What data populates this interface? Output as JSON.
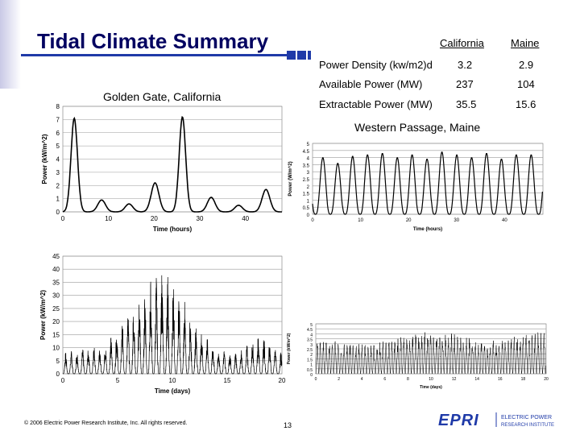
{
  "title": "Tidal Climate Summary",
  "table": {
    "headers": [
      "California",
      "Maine"
    ],
    "rows": [
      {
        "label": "Power Density (kw/m2)d",
        "california": "3.2",
        "maine": "2.9"
      },
      {
        "label": "Available Power (MW)",
        "california": "237",
        "maine": "104"
      },
      {
        "label": "Extractable Power (MW)",
        "california": "35.5",
        "maine": "15.6"
      }
    ]
  },
  "captions": {
    "golden_gate": "Golden Gate, California",
    "western_passage": "Western Passage, Maine"
  },
  "footer": "© 2006 Electric Power Research Institute, Inc. All rights reserved.",
  "page_number": "13",
  "logo": {
    "mark": "EPRI",
    "line1": "ELECTRIC POWER",
    "line2": "RESEARCH INSTITUTE"
  },
  "colors": {
    "title": "#000060",
    "accent": "#1f3aa8",
    "logo": "#1f3aa8"
  },
  "chart_data": [
    {
      "type": "line",
      "name": "golden-gate-hours",
      "xlabel": "Time (hours)",
      "ylabel": "Power (kW/m^2)",
      "xlim": [
        0,
        48
      ],
      "ylim": [
        0,
        8
      ],
      "xticks": [
        0,
        10,
        20,
        30,
        40
      ],
      "yticks": [
        0,
        1,
        2,
        3,
        4,
        5,
        6,
        7,
        8
      ],
      "grid": "horizontal",
      "peaks": [
        [
          2.5,
          7.1
        ],
        [
          8.5,
          0.9
        ],
        [
          14.5,
          0.6
        ],
        [
          20.2,
          2.2
        ],
        [
          26.2,
          7.2
        ],
        [
          32.5,
          1.1
        ],
        [
          38.5,
          0.5
        ],
        [
          44.5,
          1.7
        ]
      ]
    },
    {
      "type": "line",
      "name": "western-passage-hours",
      "xlabel": "Time (hours)",
      "ylabel": "Power (W/m^2)",
      "xlim": [
        0,
        48
      ],
      "ylim": [
        0,
        5
      ],
      "xticks": [
        0,
        10,
        20,
        30,
        40
      ],
      "yticks": [
        0,
        0.5,
        1,
        1.5,
        2,
        2.5,
        3,
        3.5,
        4,
        4.5,
        5
      ],
      "ytick_labels": [
        "0",
        "0.5",
        "1",
        "1.5",
        "2",
        "2.5",
        "3",
        "3.5",
        "4",
        "4.5",
        "5"
      ],
      "grid": "horizontal",
      "peak_values": [
        4.0,
        3.6,
        4.1,
        4.2,
        4.3,
        4.0,
        4.2,
        3.9,
        4.4,
        4.2,
        4.0,
        4.3,
        3.9,
        4.2
      ],
      "period": 6.2
    },
    {
      "type": "line",
      "name": "golden-gate-days",
      "xlabel": "Time (days)",
      "ylabel": "Power (kW/m^2)",
      "xlim": [
        0,
        20
      ],
      "ylim": [
        0,
        45
      ],
      "xticks": [
        0,
        5,
        10,
        15,
        20
      ],
      "yticks": [
        0,
        5,
        10,
        15,
        20,
        25,
        30,
        35,
        40,
        45
      ],
      "grid": "horizontal",
      "envelope": [
        [
          0,
          8
        ],
        [
          2,
          10
        ],
        [
          4,
          12
        ],
        [
          6,
          24
        ],
        [
          8,
          36
        ],
        [
          9,
          40
        ],
        [
          10,
          38
        ],
        [
          12,
          20
        ],
        [
          14,
          10
        ],
        [
          16,
          8
        ],
        [
          18,
          16
        ],
        [
          20,
          8
        ]
      ]
    },
    {
      "type": "line",
      "name": "western-passage-days",
      "xlabel": "Time (days)",
      "ylabel": "Power (kW/m^2)",
      "xlim": [
        0,
        20
      ],
      "ylim": [
        0,
        5
      ],
      "xticks": [
        0,
        2,
        4,
        6,
        8,
        10,
        12,
        14,
        16,
        18,
        20
      ],
      "yticks": [
        0,
        0.5,
        1,
        1.5,
        2,
        2.5,
        3,
        3.5,
        4,
        4.5,
        5
      ],
      "ytick_labels": [
        "0",
        "0.5",
        "1",
        "1.5",
        "2",
        "2.5",
        "3",
        "3.5",
        "4",
        "4.5",
        "5"
      ],
      "grid": "horizontal",
      "envelope": [
        [
          0,
          3.5
        ],
        [
          5,
          3.0
        ],
        [
          10,
          4.5
        ],
        [
          15,
          3.3
        ],
        [
          20,
          4.4
        ]
      ]
    }
  ]
}
